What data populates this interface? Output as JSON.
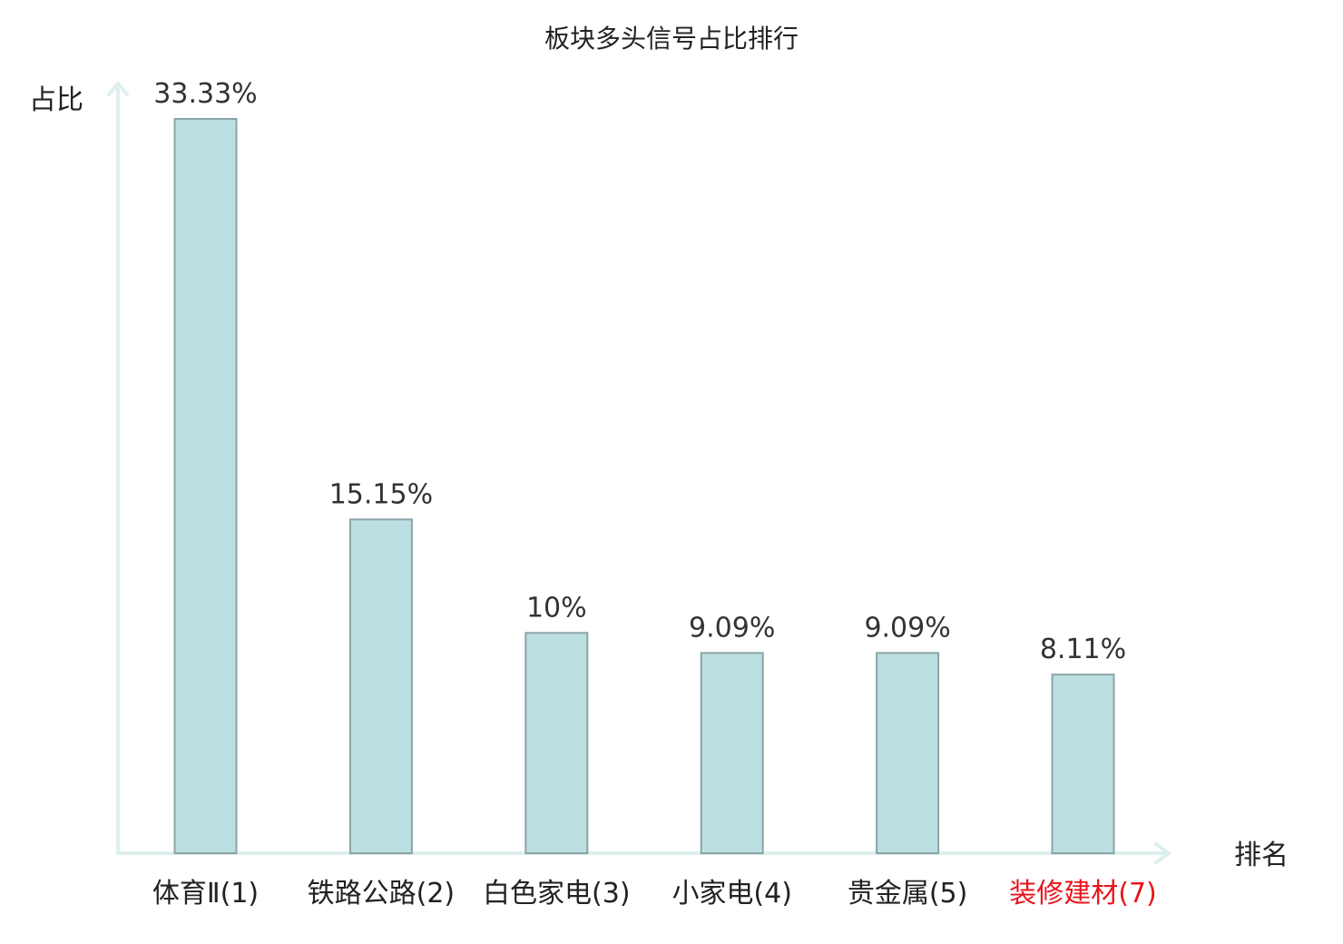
{
  "chart_data": {
    "type": "bar",
    "title": "板块多头信号占比排行",
    "ylabel": "占比",
    "xlabel": "排名",
    "categories": [
      "体育Ⅱ(1)",
      "铁路公路(2)",
      "白色家电(3)",
      "小家电(4)",
      "贵金属(5)",
      "装修建材(7)"
    ],
    "values": [
      33.33,
      15.15,
      10,
      9.09,
      9.09,
      8.11
    ],
    "value_labels": [
      "33.33%",
      "15.15%",
      "10%",
      "9.09%",
      "9.09%",
      "8.11%"
    ],
    "ylim": [
      0,
      35
    ],
    "grid": false,
    "bar_color": "#bcdfe2",
    "bar_edge_color": "#8aa4a7",
    "axis_color": "#def0ee",
    "highlight_category_index": 5,
    "highlight_color": "#e8141c"
  }
}
